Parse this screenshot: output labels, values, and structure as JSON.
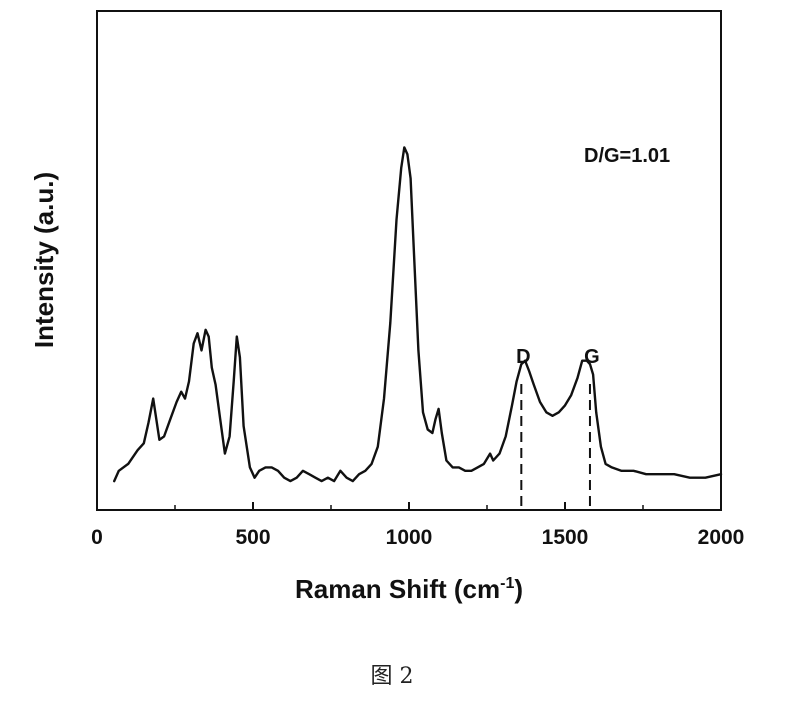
{
  "chart_data": {
    "type": "line",
    "title": "",
    "xlabel": "Raman Shift (cm",
    "xlabel_sup": "-1",
    "xlabel_close": ")",
    "ylabel": "Intensity (a.u.)",
    "xlim": [
      0,
      2000
    ],
    "ylim": [
      0,
      1
    ],
    "x_ticks": [
      0,
      500,
      1000,
      1500,
      2000
    ],
    "x_tick_labels": [
      "0",
      "500",
      "1000",
      "1500",
      "2000"
    ],
    "grid": false,
    "legend": "none",
    "line_color": "#111111",
    "series": [
      {
        "x": [
          55,
          70,
          100,
          130,
          150,
          165,
          180,
          190,
          200,
          215,
          235,
          255,
          270,
          282,
          295,
          310,
          322,
          335,
          348,
          358,
          368,
          380,
          395,
          410,
          425,
          438,
          448,
          458,
          470,
          490,
          505,
          520,
          540,
          560,
          580,
          600,
          620,
          640,
          660,
          680,
          700,
          720,
          740,
          760,
          780,
          800,
          820,
          840,
          860,
          880,
          900,
          920,
          940,
          960,
          975,
          985,
          995,
          1005,
          1015,
          1030,
          1045,
          1060,
          1075,
          1085,
          1095,
          1105,
          1120,
          1140,
          1160,
          1180,
          1200,
          1220,
          1240,
          1260,
          1270,
          1290,
          1310,
          1330,
          1345,
          1360,
          1372,
          1385,
          1400,
          1420,
          1440,
          1460,
          1480,
          1500,
          1520,
          1540,
          1555,
          1570,
          1580,
          1590,
          1600,
          1615,
          1630,
          1650,
          1680,
          1720,
          1760,
          1800,
          1850,
          1900,
          1950,
          2000
        ],
        "values": [
          0.02,
          0.05,
          0.07,
          0.11,
          0.13,
          0.19,
          0.26,
          0.2,
          0.14,
          0.15,
          0.2,
          0.25,
          0.28,
          0.26,
          0.31,
          0.42,
          0.45,
          0.4,
          0.46,
          0.44,
          0.35,
          0.3,
          0.2,
          0.1,
          0.15,
          0.31,
          0.44,
          0.38,
          0.18,
          0.06,
          0.03,
          0.05,
          0.06,
          0.06,
          0.05,
          0.03,
          0.02,
          0.03,
          0.05,
          0.04,
          0.03,
          0.02,
          0.03,
          0.02,
          0.05,
          0.03,
          0.02,
          0.04,
          0.05,
          0.07,
          0.12,
          0.26,
          0.48,
          0.78,
          0.93,
          0.99,
          0.97,
          0.9,
          0.7,
          0.4,
          0.22,
          0.17,
          0.16,
          0.2,
          0.23,
          0.16,
          0.08,
          0.06,
          0.06,
          0.05,
          0.05,
          0.06,
          0.07,
          0.1,
          0.08,
          0.1,
          0.15,
          0.24,
          0.31,
          0.36,
          0.37,
          0.34,
          0.3,
          0.25,
          0.22,
          0.21,
          0.22,
          0.24,
          0.27,
          0.32,
          0.37,
          0.37,
          0.36,
          0.33,
          0.22,
          0.12,
          0.07,
          0.06,
          0.05,
          0.05,
          0.04,
          0.04,
          0.04,
          0.03,
          0.03,
          0.04
        ]
      }
    ],
    "markers": [
      {
        "label": "D",
        "x": 1360
      },
      {
        "label": "G",
        "x": 1580
      }
    ],
    "annotation": "D/G=1.01"
  },
  "caption": "图 2"
}
